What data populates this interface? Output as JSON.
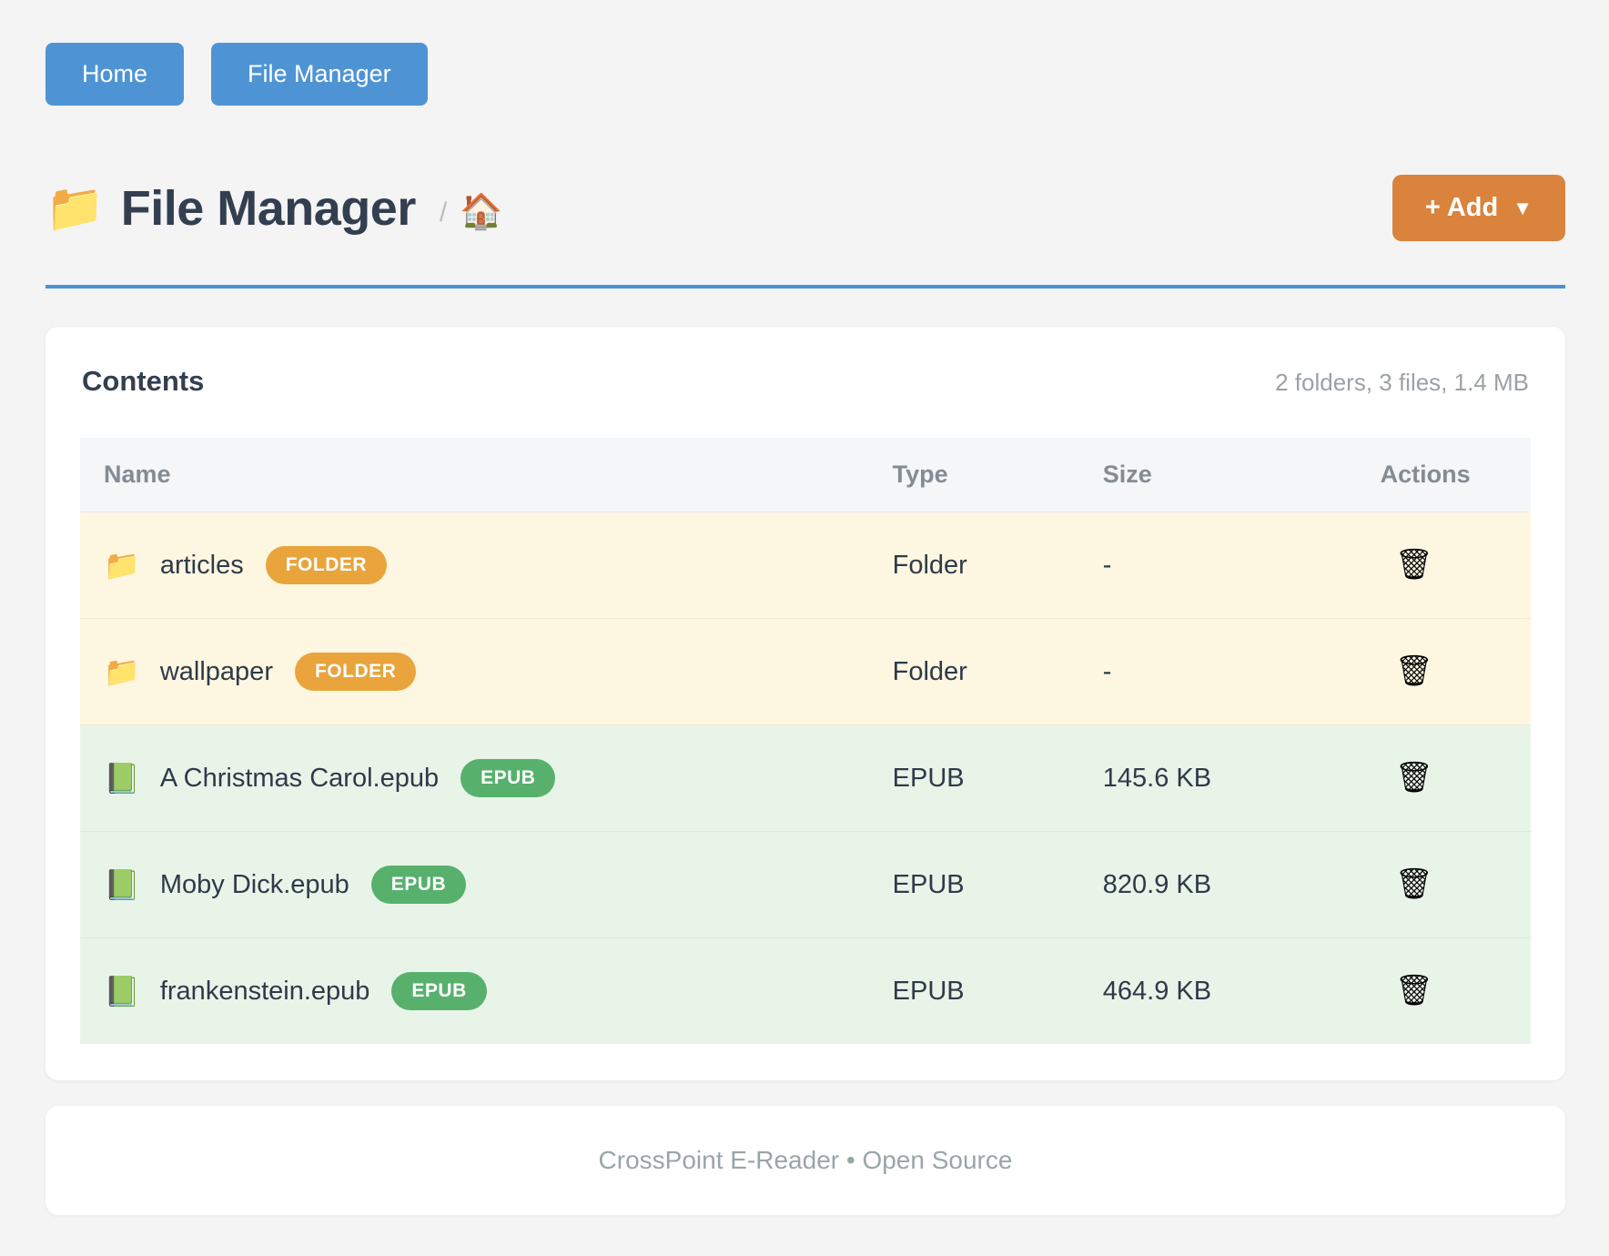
{
  "nav": {
    "home_label": "Home",
    "file_manager_label": "File Manager"
  },
  "header": {
    "folder_icon": "📁",
    "title": "File Manager",
    "breadcrumb_separator": "/",
    "home_icon": "🏠",
    "add_label": "+ Add",
    "add_caret": "▼"
  },
  "contents": {
    "title": "Contents",
    "summary": "2 folders, 3 files, 1.4 MB",
    "columns": [
      "Name",
      "Type",
      "Size",
      "Actions"
    ],
    "rows": [
      {
        "icon": "📁",
        "icon_name": "folder-icon",
        "name": "articles",
        "badge": "FOLDER",
        "kind": "folder",
        "type": "Folder",
        "size": "-"
      },
      {
        "icon": "📁",
        "icon_name": "folder-icon",
        "name": "wallpaper",
        "badge": "FOLDER",
        "kind": "folder",
        "type": "Folder",
        "size": "-"
      },
      {
        "icon": "📗",
        "icon_name": "book-icon",
        "name": "A Christmas Carol.epub",
        "badge": "EPUB",
        "kind": "epub",
        "type": "EPUB",
        "size": "145.6 KB"
      },
      {
        "icon": "📗",
        "icon_name": "book-icon",
        "name": "Moby Dick.epub",
        "badge": "EPUB",
        "kind": "epub",
        "type": "EPUB",
        "size": "820.9 KB"
      },
      {
        "icon": "📗",
        "icon_name": "book-icon",
        "name": "frankenstein.epub",
        "badge": "EPUB",
        "kind": "epub",
        "type": "EPUB",
        "size": "464.9 KB"
      }
    ]
  },
  "icons": {
    "trash": "🗑"
  },
  "footer": {
    "text": "CrossPoint E-Reader • Open Source"
  },
  "colors": {
    "nav_button": "#4e94d4",
    "add_button": "#d9833c",
    "folder_badge": "#e9a43c",
    "epub_badge": "#57b16d",
    "folder_row_bg": "#fdf6e1",
    "epub_row_bg": "#e9f4e9",
    "divider_blue": "#4a91d8",
    "title_text": "#333f50"
  }
}
